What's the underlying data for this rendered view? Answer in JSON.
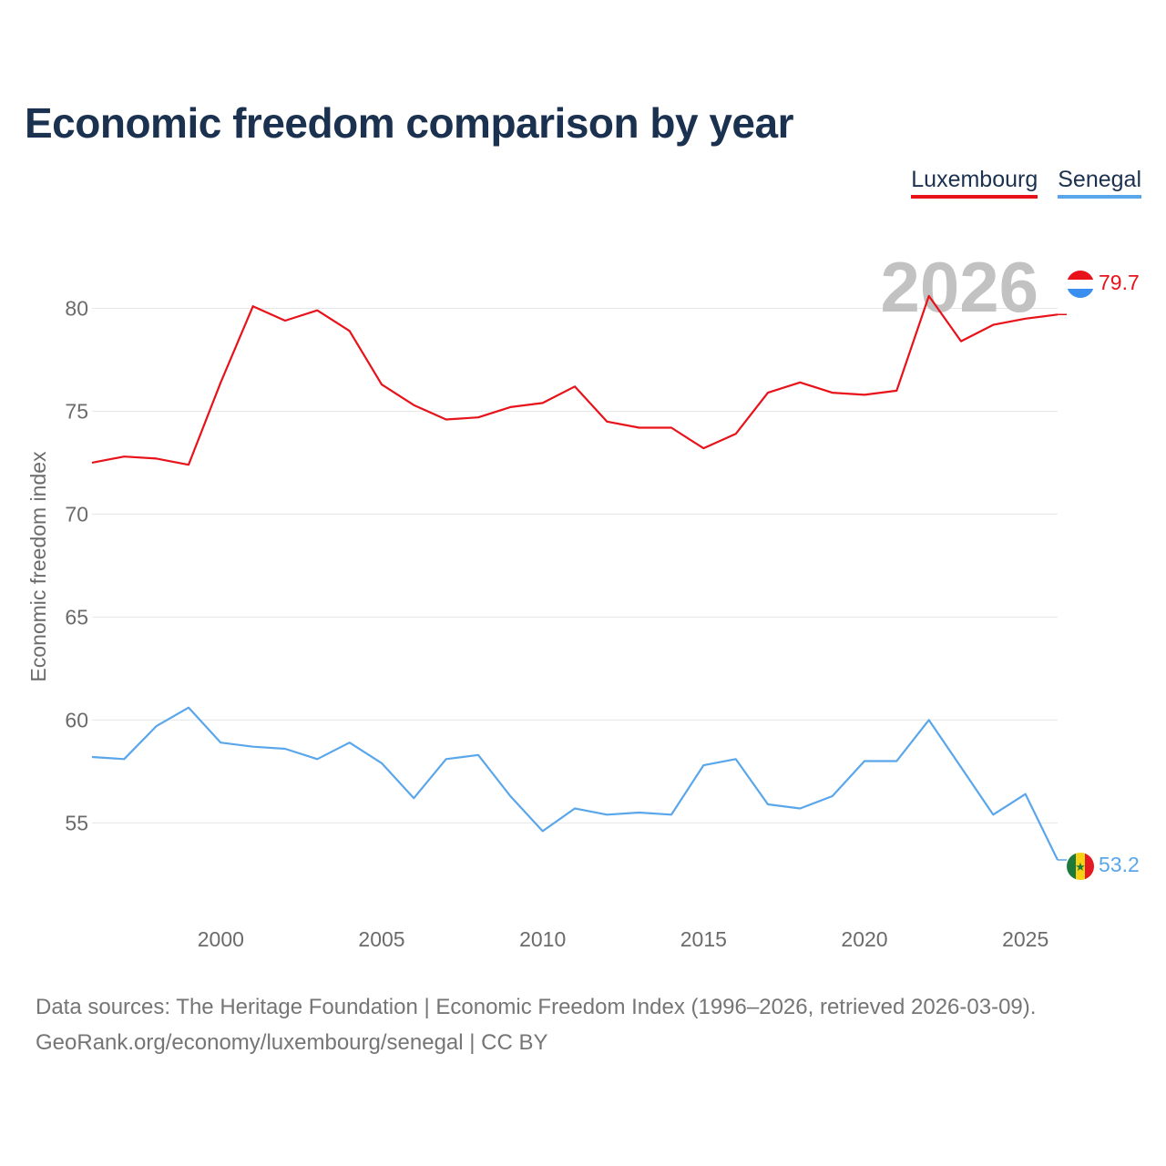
{
  "title": "Economic freedom comparison by year",
  "legend": [
    {
      "label": "Luxembourg",
      "color": "#e8121a"
    },
    {
      "label": "Senegal",
      "color": "#5aa6ea"
    }
  ],
  "year_watermark": "2026",
  "chart_data": {
    "type": "line",
    "title": "Economic freedom comparison by year",
    "xlabel": "",
    "ylabel": "Economic freedom index",
    "x": [
      1996,
      1997,
      1998,
      1999,
      2000,
      2001,
      2002,
      2003,
      2004,
      2005,
      2006,
      2007,
      2008,
      2009,
      2010,
      2011,
      2012,
      2013,
      2014,
      2015,
      2016,
      2017,
      2018,
      2019,
      2020,
      2021,
      2022,
      2023,
      2024,
      2025,
      2026
    ],
    "xlim": [
      1996,
      2026
    ],
    "ylim": [
      50.5,
      82.5
    ],
    "xticks": [
      2000,
      2005,
      2010,
      2015,
      2020,
      2025
    ],
    "yticks": [
      55,
      60,
      65,
      70,
      75,
      80
    ],
    "grid": true,
    "series": [
      {
        "name": "Luxembourg",
        "color": "#e8121a",
        "values": [
          72.5,
          72.8,
          72.7,
          72.4,
          76.4,
          80.1,
          79.4,
          79.9,
          78.9,
          76.3,
          75.3,
          74.6,
          74.7,
          75.2,
          75.4,
          76.2,
          74.5,
          74.2,
          74.2,
          73.2,
          73.9,
          75.9,
          76.4,
          75.9,
          75.8,
          76.0,
          80.6,
          78.4,
          79.2,
          79.5,
          79.7
        ],
        "end_label": "79.7"
      },
      {
        "name": "Senegal",
        "color": "#5aa6ea",
        "values": [
          58.2,
          58.1,
          59.7,
          60.6,
          58.9,
          58.7,
          58.6,
          58.1,
          58.9,
          57.9,
          56.2,
          58.1,
          58.3,
          56.3,
          54.6,
          55.7,
          55.4,
          55.5,
          55.4,
          57.8,
          58.1,
          55.9,
          55.7,
          56.3,
          58.0,
          58.0,
          60.0,
          57.7,
          55.4,
          56.4,
          53.2
        ],
        "end_label": "53.2"
      }
    ]
  },
  "source": {
    "line1": "Data sources: The Heritage Foundation | Economic Freedom Index (1996–2026, retrieved 2026-03-09).",
    "line2": "GeoRank.org/economy/luxembourg/senegal | CC BY"
  }
}
